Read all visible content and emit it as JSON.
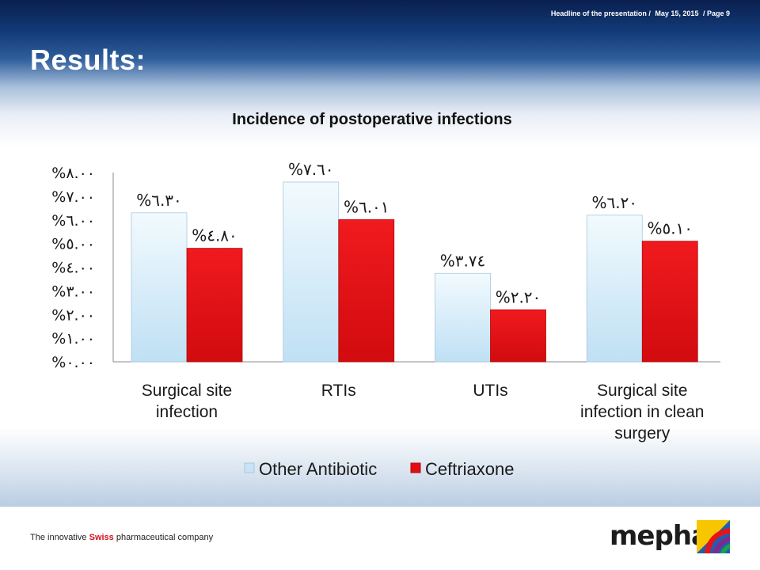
{
  "header": {
    "presentation": "Headline of the presentation /",
    "date": "May 15, 2015",
    "page": "/ Page 9"
  },
  "slide": {
    "title": "Results:"
  },
  "footer": {
    "tagline_before": "The innovative ",
    "tagline_highlight": "Swiss",
    "tagline_after": " pharmaceutical company",
    "logo_text": "mepha"
  },
  "colors": {
    "other_antibiotic": "#c6e4f6",
    "ceftriaxone": "#e30e12",
    "tagline_highlight": "#d3121b"
  },
  "chart_data": {
    "type": "bar",
    "title": "Incidence of postoperative infections",
    "xlabel": "",
    "ylabel": "",
    "categories": [
      [
        "Surgical site",
        "infection"
      ],
      [
        "RTIs"
      ],
      [
        "UTIs"
      ],
      [
        "Surgical site",
        "infection in clean",
        "surgery"
      ]
    ],
    "series": [
      {
        "name": "Other Antibiotic",
        "values": [
          6.3,
          7.6,
          3.74,
          6.2
        ],
        "labels": [
          "%٦.٣٠",
          "%٧.٦٠",
          "%٣.٧٤",
          "%٦.٢٠"
        ]
      },
      {
        "name": "Ceftriaxone",
        "values": [
          4.8,
          6.01,
          2.2,
          5.1
        ],
        "labels": [
          "%٤.٨٠",
          "%٦.٠١",
          "%٢.٢٠",
          "%٥.١٠"
        ]
      }
    ],
    "ylim": [
      0,
      8
    ],
    "yticks": [
      0,
      1,
      2,
      3,
      4,
      5,
      6,
      7,
      8
    ],
    "ytick_labels": [
      "%٠.٠٠",
      "%١.٠٠",
      "%٢.٠٠",
      "%٣.٠٠",
      "%٤.٠٠",
      "%٥.٠٠",
      "%٦.٠٠",
      "%٧.٠٠",
      "%٨.٠٠"
    ],
    "grid": false,
    "legend_position": "bottom"
  }
}
